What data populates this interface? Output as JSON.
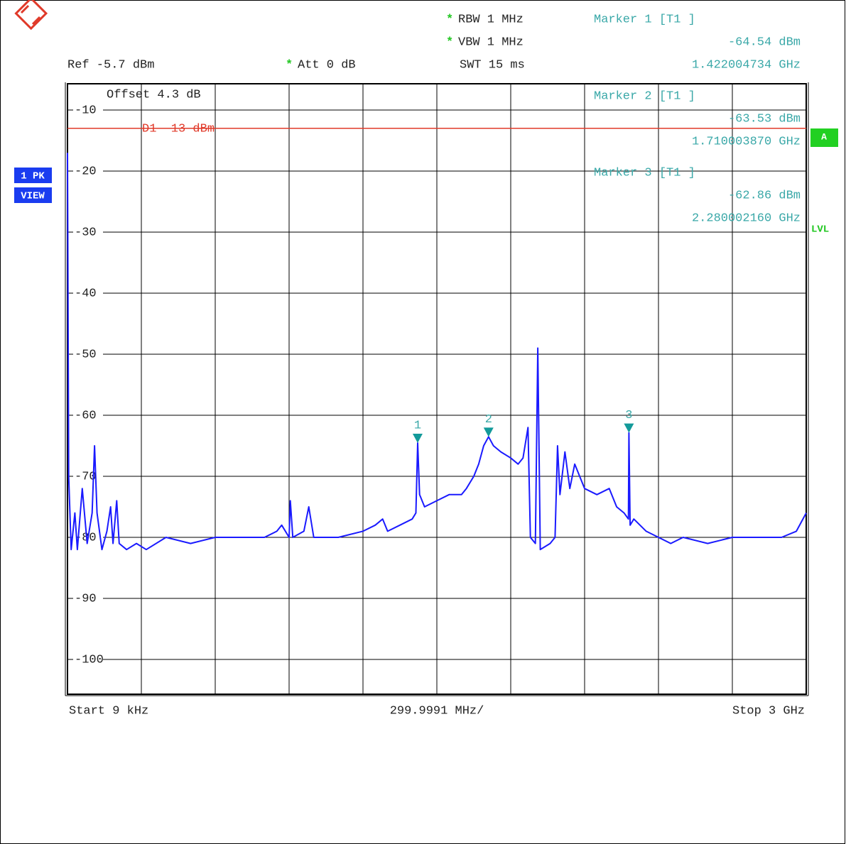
{
  "chart_data": {
    "type": "line",
    "header": {
      "rbw_star": "*",
      "rbw": "RBW 1 MHz",
      "vbw_star": "*",
      "vbw": "VBW 1 MHz",
      "ref": "Ref -5.7 dBm",
      "att_star": "*",
      "att": "Att 0 dB",
      "swt": "SWT 15 ms",
      "offset": "Offset 4.3 dB"
    },
    "side": {
      "trace_mode": "1 PK",
      "trace_view": "VIEW",
      "status": "A",
      "level": "LVL"
    },
    "footer": {
      "start": "Start 9 kHz",
      "span_per_div": "299.9991 MHz/",
      "stop": "Stop 3 GHz"
    },
    "xlim": [
      0.009,
      3000
    ],
    "xgrid_divisions": 10,
    "ylim": [
      -105.7,
      -5.7
    ],
    "yticks": [
      -10,
      -20,
      -30,
      -40,
      -50,
      -60,
      -70,
      -80,
      -90,
      -100
    ],
    "grid": true,
    "display_line": {
      "value": -13,
      "label": "D1 -13 dBm",
      "color": "#e03a2a"
    },
    "series": [
      {
        "name": "Trace 1",
        "color": "#1a1aff",
        "x": [
          0.009,
          5,
          15,
          30,
          40,
          60,
          80,
          100,
          110,
          120,
          140,
          160,
          175,
          185,
          200,
          210,
          240,
          280,
          320,
          400,
          500,
          600,
          700,
          800,
          850,
          870,
          900,
          905,
          915,
          960,
          980,
          1000,
          1100,
          1200,
          1250,
          1280,
          1300,
          1350,
          1400,
          1415,
          1422.004734,
          1430,
          1450,
          1500,
          1550,
          1600,
          1620,
          1650,
          1670,
          1690,
          1710.00387,
          1730,
          1760,
          1800,
          1830,
          1850,
          1870,
          1880,
          1900,
          1910,
          1920,
          1960,
          1980,
          1990,
          2000,
          2020,
          2040,
          2060,
          2100,
          2150,
          2200,
          2230,
          2260,
          2278,
          2280.00216,
          2285,
          2300,
          2350,
          2400,
          2450,
          2500,
          2600,
          2700,
          2800,
          2900,
          2960,
          3000
        ],
        "values": [
          -17,
          -70,
          -82,
          -76,
          -82,
          -72,
          -81,
          -76,
          -65,
          -76,
          -82,
          -79,
          -75,
          -81,
          -74,
          -81,
          -82,
          -81,
          -82,
          -80,
          -81,
          -80,
          -80,
          -80,
          -79,
          -78,
          -80,
          -74,
          -80,
          -79,
          -75,
          -80,
          -80,
          -79,
          -78,
          -77,
          -79,
          -78,
          -77,
          -76,
          -64.54,
          -73,
          -75,
          -74,
          -73,
          -73,
          -72,
          -70,
          -68,
          -65,
          -63.53,
          -65,
          -66,
          -67,
          -68,
          -67,
          -62,
          -80,
          -81,
          -49,
          -82,
          -81,
          -80,
          -65,
          -73,
          -66,
          -72,
          -68,
          -72,
          -73,
          -72,
          -75,
          -76,
          -77,
          -62.86,
          -78,
          -77,
          -79,
          -80,
          -81,
          -80,
          -81,
          -80,
          -80,
          -80,
          -79,
          -76
        ]
      }
    ],
    "markers": [
      {
        "label": "1",
        "header": "Marker 1 [T1 ]",
        "x": 1422.004734,
        "y": -64.54,
        "level_label": "-64.54 dBm",
        "freq_label": "1.422004734 GHz"
      },
      {
        "label": "2",
        "header": "Marker 2 [T1 ]",
        "x": 1710.00387,
        "y": -63.53,
        "level_label": "-63.53 dBm",
        "freq_label": "1.710003870 GHz"
      },
      {
        "label": "3",
        "header": "Marker 3 [T1 ]",
        "x": 2280.00216,
        "y": -62.86,
        "level_label": "-62.86 dBm",
        "freq_label": "2.280002160 GHz"
      }
    ],
    "marker_color": "#139a9a"
  }
}
